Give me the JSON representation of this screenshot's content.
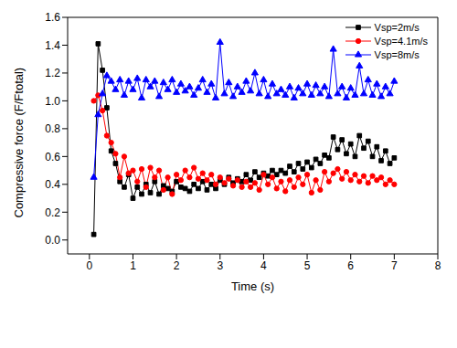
{
  "chart_data": {
    "type": "line",
    "x_label": "Time (s)",
    "y_label": "Compressive force (F/Ftotal)",
    "x": [
      0.1,
      0.2,
      0.3,
      0.4,
      0.5,
      0.6,
      0.7,
      0.8,
      0.9,
      1.0,
      1.1,
      1.2,
      1.3,
      1.4,
      1.5,
      1.6,
      1.7,
      1.8,
      1.9,
      2.0,
      2.1,
      2.2,
      2.3,
      2.4,
      2.5,
      2.6,
      2.7,
      2.8,
      2.9,
      3.0,
      3.1,
      3.2,
      3.3,
      3.4,
      3.5,
      3.6,
      3.7,
      3.8,
      3.9,
      4.0,
      4.1,
      4.2,
      4.3,
      4.4,
      4.5,
      4.6,
      4.7,
      4.8,
      4.9,
      5.0,
      5.1,
      5.2,
      5.3,
      5.4,
      5.5,
      5.6,
      5.7,
      5.8,
      5.9,
      6.0,
      6.1,
      6.2,
      6.3,
      6.4,
      6.5,
      6.6,
      6.7,
      6.8,
      6.9,
      7.0
    ],
    "series": [
      {
        "name": "Vsp=2m/s",
        "color": "#000000",
        "marker": "square",
        "values": [
          0.04,
          1.41,
          1.22,
          0.95,
          0.64,
          0.55,
          0.42,
          0.38,
          0.47,
          0.3,
          0.38,
          0.33,
          0.4,
          0.34,
          0.42,
          0.33,
          0.39,
          0.37,
          0.35,
          0.42,
          0.38,
          0.37,
          0.35,
          0.4,
          0.37,
          0.42,
          0.36,
          0.4,
          0.37,
          0.43,
          0.4,
          0.45,
          0.41,
          0.44,
          0.42,
          0.47,
          0.43,
          0.49,
          0.45,
          0.48,
          0.46,
          0.5,
          0.47,
          0.5,
          0.48,
          0.53,
          0.49,
          0.55,
          0.51,
          0.56,
          0.52,
          0.58,
          0.55,
          0.61,
          0.59,
          0.74,
          0.65,
          0.72,
          0.62,
          0.69,
          0.6,
          0.75,
          0.66,
          0.71,
          0.6,
          0.67,
          0.57,
          0.64,
          0.55,
          0.59
        ]
      },
      {
        "name": "Vsp=4.1m/s",
        "color": "#ff0000",
        "marker": "circle",
        "values": [
          1.0,
          1.04,
          0.93,
          0.75,
          0.7,
          0.62,
          0.45,
          0.6,
          0.48,
          0.5,
          0.42,
          0.51,
          0.38,
          0.52,
          0.45,
          0.5,
          0.36,
          0.45,
          0.33,
          0.47,
          0.43,
          0.5,
          0.45,
          0.52,
          0.44,
          0.48,
          0.43,
          0.47,
          0.4,
          0.45,
          0.41,
          0.44,
          0.39,
          0.43,
          0.38,
          0.42,
          0.38,
          0.41,
          0.36,
          0.47,
          0.4,
          0.45,
          0.37,
          0.42,
          0.35,
          0.43,
          0.38,
          0.45,
          0.4,
          0.47,
          0.34,
          0.43,
          0.36,
          0.49,
          0.42,
          0.48,
          0.51,
          0.44,
          0.49,
          0.43,
          0.47,
          0.42,
          0.46,
          0.41,
          0.46,
          0.43,
          0.45,
          0.4,
          0.43,
          0.4
        ]
      },
      {
        "name": "Vsp=8m/s",
        "color": "#0000ff",
        "marker": "triangle",
        "values": [
          0.45,
          0.9,
          1.05,
          1.18,
          1.14,
          1.08,
          1.15,
          1.04,
          1.14,
          1.08,
          1.16,
          1.02,
          1.15,
          1.1,
          1.14,
          1.03,
          1.13,
          1.08,
          1.15,
          1.06,
          1.12,
          1.07,
          1.1,
          1.04,
          1.09,
          1.15,
          1.06,
          1.12,
          1.02,
          1.42,
          1.05,
          1.13,
          1.03,
          1.1,
          1.06,
          1.14,
          1.07,
          1.2,
          1.05,
          1.15,
          1.03,
          1.12,
          1.05,
          1.08,
          1.04,
          1.1,
          1.02,
          1.09,
          1.05,
          1.12,
          1.04,
          1.11,
          1.05,
          1.1,
          1.03,
          1.37,
          1.05,
          1.1,
          1.02,
          1.09,
          1.04,
          1.25,
          1.05,
          1.15,
          1.04,
          1.12,
          1.03,
          1.1,
          1.05,
          1.14
        ]
      }
    ],
    "xlim": [
      -0.5,
      8
    ],
    "xticks": [
      0,
      1,
      2,
      3,
      4,
      5,
      6,
      7,
      8
    ],
    "ylim": [
      -0.1,
      1.6
    ],
    "yticks": [
      {
        "value": 0,
        "label": "0.0"
      },
      0.2,
      0.4,
      0.6,
      0.8,
      {
        "value": 1,
        "label": "1.0"
      },
      1.2,
      1.4,
      1.6
    ],
    "legend": "top-right",
    "grid": false
  }
}
